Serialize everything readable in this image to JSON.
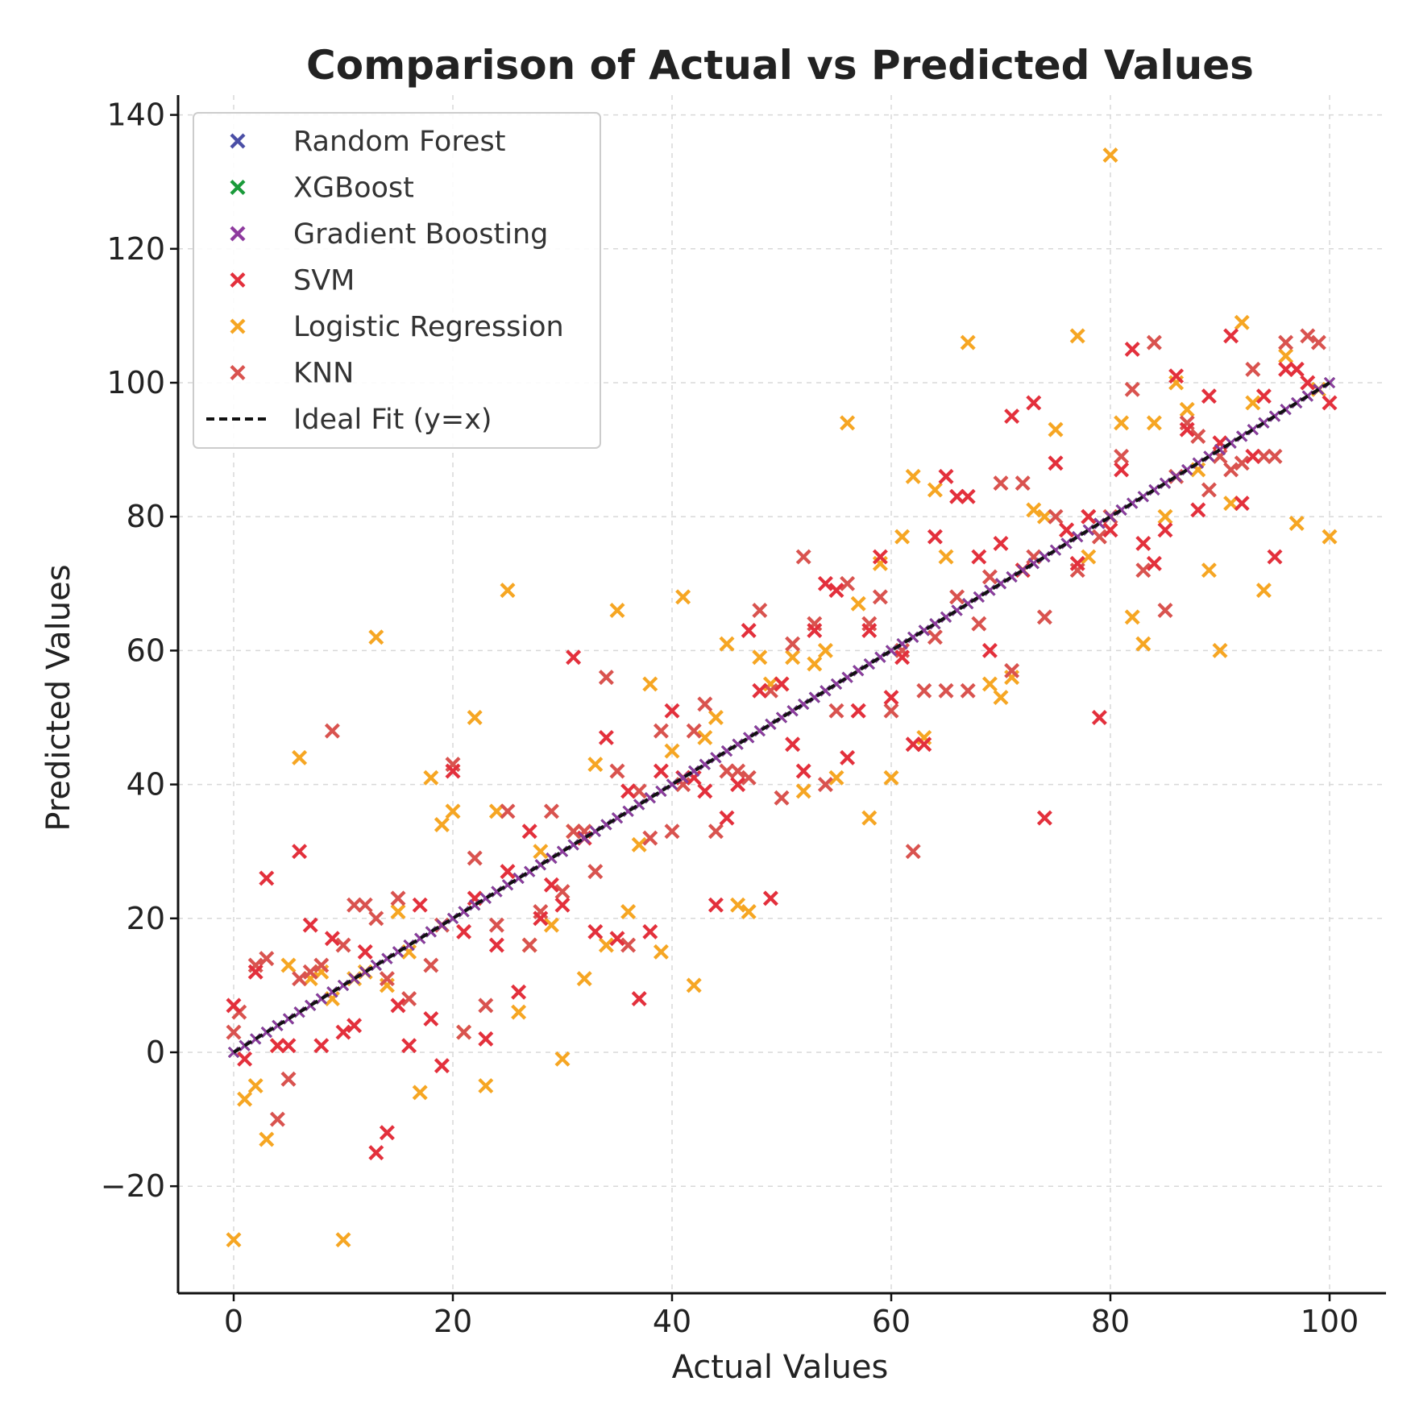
{
  "chart_data": {
    "type": "scatter",
    "title": "Comparison of Actual vs Predicted Values",
    "xlabel": "Actual Values",
    "ylabel": "Predicted Values",
    "xlim": [
      -5,
      105
    ],
    "ylim": [
      -36,
      143
    ],
    "xticks": [
      0,
      20,
      40,
      60,
      80,
      100
    ],
    "yticks": [
      -20,
      0,
      20,
      40,
      60,
      80,
      100,
      120,
      140
    ],
    "xtick_labels": [
      "0",
      "20",
      "40",
      "60",
      "80",
      "100"
    ],
    "ytick_labels": [
      "−20",
      "0",
      "20",
      "40",
      "60",
      "80",
      "100",
      "120",
      "140"
    ],
    "grid": true,
    "legend_position": "top-left",
    "series": [
      {
        "name": "Random Forest",
        "color": "#4b4fa6",
        "marker": "x",
        "on_ideal_line": true
      },
      {
        "name": "XGBoost",
        "color": "#1a9a3a",
        "marker": "x",
        "on_ideal_line": true
      },
      {
        "name": "Gradient Boosting",
        "color": "#8e3a9e",
        "marker": "x",
        "on_ideal_line": true
      },
      {
        "name": "SVM",
        "color": "#e3303c",
        "marker": "x",
        "points": [
          [
            0,
            7
          ],
          [
            1,
            -1
          ],
          [
            2,
            12
          ],
          [
            3,
            26
          ],
          [
            4,
            1
          ],
          [
            5,
            1
          ],
          [
            6,
            30
          ],
          [
            7,
            19
          ],
          [
            8,
            1
          ],
          [
            9,
            17
          ],
          [
            10,
            3
          ],
          [
            11,
            4
          ],
          [
            12,
            15
          ],
          [
            13,
            -15
          ],
          [
            14,
            -12
          ],
          [
            15,
            7
          ],
          [
            16,
            1
          ],
          [
            17,
            22
          ],
          [
            18,
            5
          ],
          [
            19,
            -2
          ],
          [
            20,
            42
          ],
          [
            21,
            18
          ],
          [
            22,
            23
          ],
          [
            23,
            2
          ],
          [
            24,
            16
          ],
          [
            25,
            27
          ],
          [
            26,
            9
          ],
          [
            27,
            33
          ],
          [
            28,
            20
          ],
          [
            29,
            25
          ],
          [
            30,
            22
          ],
          [
            31,
            59
          ],
          [
            32,
            32
          ],
          [
            33,
            18
          ],
          [
            34,
            47
          ],
          [
            35,
            17
          ],
          [
            36,
            39
          ],
          [
            37,
            8
          ],
          [
            38,
            18
          ],
          [
            39,
            42
          ],
          [
            40,
            51
          ],
          [
            41,
            41
          ],
          [
            42,
            41
          ],
          [
            43,
            39
          ],
          [
            44,
            22
          ],
          [
            45,
            35
          ],
          [
            46,
            40
          ],
          [
            47,
            63
          ],
          [
            48,
            54
          ],
          [
            49,
            23
          ],
          [
            50,
            55
          ],
          [
            51,
            46
          ],
          [
            52,
            42
          ],
          [
            53,
            63
          ],
          [
            54,
            70
          ],
          [
            55,
            69
          ],
          [
            56,
            44
          ],
          [
            57,
            51
          ],
          [
            58,
            63
          ],
          [
            59,
            74
          ],
          [
            60,
            53
          ],
          [
            61,
            59
          ],
          [
            62,
            46
          ],
          [
            63,
            46
          ],
          [
            64,
            77
          ],
          [
            65,
            86
          ],
          [
            66,
            83
          ],
          [
            67,
            83
          ],
          [
            68,
            74
          ],
          [
            69,
            60
          ],
          [
            70,
            76
          ],
          [
            71,
            95
          ],
          [
            72,
            72
          ],
          [
            73,
            97
          ],
          [
            74,
            35
          ],
          [
            75,
            88
          ],
          [
            76,
            78
          ],
          [
            77,
            73
          ],
          [
            78,
            80
          ],
          [
            79,
            50
          ],
          [
            80,
            78
          ],
          [
            81,
            87
          ],
          [
            82,
            105
          ],
          [
            83,
            76
          ],
          [
            84,
            73
          ],
          [
            85,
            78
          ],
          [
            86,
            101
          ],
          [
            87,
            93
          ],
          [
            88,
            81
          ],
          [
            89,
            98
          ],
          [
            90,
            91
          ],
          [
            91,
            107
          ],
          [
            92,
            82
          ],
          [
            93,
            89
          ],
          [
            94,
            98
          ],
          [
            95,
            74
          ],
          [
            96,
            102
          ],
          [
            97,
            102
          ],
          [
            98,
            100
          ],
          [
            100,
            97
          ]
        ]
      },
      {
        "name": "Logistic Regression",
        "color": "#f6a623",
        "marker": "x",
        "points": [
          [
            0,
            -28
          ],
          [
            1,
            -7
          ],
          [
            2,
            -5
          ],
          [
            3,
            -13
          ],
          [
            4,
            1
          ],
          [
            5,
            13
          ],
          [
            6,
            44
          ],
          [
            7,
            11
          ],
          [
            8,
            12
          ],
          [
            9,
            8
          ],
          [
            10,
            -28
          ],
          [
            11,
            11
          ],
          [
            12,
            12
          ],
          [
            13,
            62
          ],
          [
            14,
            10
          ],
          [
            15,
            21
          ],
          [
            16,
            15
          ],
          [
            17,
            -6
          ],
          [
            18,
            41
          ],
          [
            19,
            34
          ],
          [
            20,
            36
          ],
          [
            21,
            3
          ],
          [
            22,
            50
          ],
          [
            23,
            -5
          ],
          [
            24,
            36
          ],
          [
            25,
            69
          ],
          [
            26,
            6
          ],
          [
            27,
            16
          ],
          [
            28,
            30
          ],
          [
            29,
            19
          ],
          [
            30,
            -1
          ],
          [
            31,
            33
          ],
          [
            32,
            11
          ],
          [
            33,
            43
          ],
          [
            34,
            16
          ],
          [
            35,
            66
          ],
          [
            36,
            21
          ],
          [
            37,
            31
          ],
          [
            38,
            55
          ],
          [
            39,
            15
          ],
          [
            40,
            45
          ],
          [
            41,
            68
          ],
          [
            42,
            10
          ],
          [
            43,
            47
          ],
          [
            44,
            50
          ],
          [
            45,
            61
          ],
          [
            46,
            22
          ],
          [
            47,
            21
          ],
          [
            48,
            59
          ],
          [
            49,
            55
          ],
          [
            50,
            55
          ],
          [
            51,
            59
          ],
          [
            52,
            39
          ],
          [
            53,
            58
          ],
          [
            54,
            60
          ],
          [
            55,
            41
          ],
          [
            56,
            94
          ],
          [
            57,
            67
          ],
          [
            58,
            35
          ],
          [
            59,
            73
          ],
          [
            60,
            41
          ],
          [
            61,
            77
          ],
          [
            62,
            86
          ],
          [
            63,
            47
          ],
          [
            64,
            84
          ],
          [
            65,
            74
          ],
          [
            67,
            106
          ],
          [
            69,
            55
          ],
          [
            70,
            53
          ],
          [
            71,
            56
          ],
          [
            72,
            72
          ],
          [
            73,
            81
          ],
          [
            74,
            80
          ],
          [
            75,
            93
          ],
          [
            77,
            107
          ],
          [
            78,
            74
          ],
          [
            80,
            134
          ],
          [
            81,
            94
          ],
          [
            82,
            65
          ],
          [
            83,
            61
          ],
          [
            84,
            94
          ],
          [
            85,
            80
          ],
          [
            86,
            100
          ],
          [
            87,
            96
          ],
          [
            88,
            87
          ],
          [
            89,
            72
          ],
          [
            90,
            60
          ],
          [
            91,
            82
          ],
          [
            92,
            109
          ],
          [
            93,
            97
          ],
          [
            94,
            69
          ],
          [
            96,
            104
          ],
          [
            97,
            79
          ],
          [
            99,
            99
          ],
          [
            100,
            77
          ]
        ]
      },
      {
        "name": "KNN",
        "color": "#d9534f",
        "marker": "x",
        "points": [
          [
            0,
            3
          ],
          [
            0.5,
            6
          ],
          [
            2,
            13
          ],
          [
            3,
            14
          ],
          [
            4,
            -10
          ],
          [
            5,
            -4
          ],
          [
            6,
            11
          ],
          [
            7,
            12
          ],
          [
            8,
            13
          ],
          [
            9,
            48
          ],
          [
            10,
            16
          ],
          [
            11,
            22
          ],
          [
            12,
            22
          ],
          [
            13,
            20
          ],
          [
            14,
            11
          ],
          [
            15,
            23
          ],
          [
            16,
            8
          ],
          [
            18,
            13
          ],
          [
            19,
            19
          ],
          [
            20,
            43
          ],
          [
            21,
            3
          ],
          [
            22,
            29
          ],
          [
            23,
            7
          ],
          [
            24,
            19
          ],
          [
            25,
            36
          ],
          [
            27,
            16
          ],
          [
            28,
            21
          ],
          [
            29,
            36
          ],
          [
            30,
            24
          ],
          [
            31,
            33
          ],
          [
            32,
            33
          ],
          [
            33,
            27
          ],
          [
            34,
            56
          ],
          [
            35,
            42
          ],
          [
            36,
            16
          ],
          [
            37,
            39
          ],
          [
            38,
            32
          ],
          [
            39,
            48
          ],
          [
            40,
            33
          ],
          [
            41,
            40
          ],
          [
            42,
            48
          ],
          [
            43,
            52
          ],
          [
            44,
            33
          ],
          [
            45,
            42
          ],
          [
            46,
            42
          ],
          [
            47,
            41
          ],
          [
            48,
            66
          ],
          [
            49,
            54
          ],
          [
            50,
            38
          ],
          [
            51,
            61
          ],
          [
            52,
            74
          ],
          [
            53,
            64
          ],
          [
            54,
            40
          ],
          [
            55,
            51
          ],
          [
            56,
            70
          ],
          [
            57,
            51
          ],
          [
            58,
            64
          ],
          [
            59,
            68
          ],
          [
            60,
            51
          ],
          [
            61,
            60
          ],
          [
            62,
            30
          ],
          [
            63,
            54
          ],
          [
            64,
            62
          ],
          [
            65,
            54
          ],
          [
            66,
            68
          ],
          [
            67,
            54
          ],
          [
            68,
            64
          ],
          [
            69,
            71
          ],
          [
            70,
            85
          ],
          [
            71,
            57
          ],
          [
            72,
            85
          ],
          [
            73,
            74
          ],
          [
            74,
            65
          ],
          [
            75,
            80
          ],
          [
            76,
            78
          ],
          [
            77,
            72
          ],
          [
            78,
            80
          ],
          [
            79,
            77
          ],
          [
            80,
            80
          ],
          [
            81,
            89
          ],
          [
            82,
            99
          ],
          [
            83,
            72
          ],
          [
            84,
            106
          ],
          [
            85,
            66
          ],
          [
            86,
            86
          ],
          [
            87,
            94
          ],
          [
            88,
            92
          ],
          [
            89,
            84
          ],
          [
            90,
            89
          ],
          [
            91,
            87
          ],
          [
            92,
            88
          ],
          [
            93,
            102
          ],
          [
            94,
            89
          ],
          [
            95,
            89
          ],
          [
            96,
            106
          ],
          [
            97,
            102
          ],
          [
            98,
            107
          ],
          [
            99,
            106
          ]
        ]
      },
      {
        "name": "Ideal Fit (y=x)",
        "color": "#111111",
        "style": "dashed",
        "line": [
          [
            0,
            0
          ],
          [
            100,
            100
          ]
        ]
      }
    ]
  }
}
